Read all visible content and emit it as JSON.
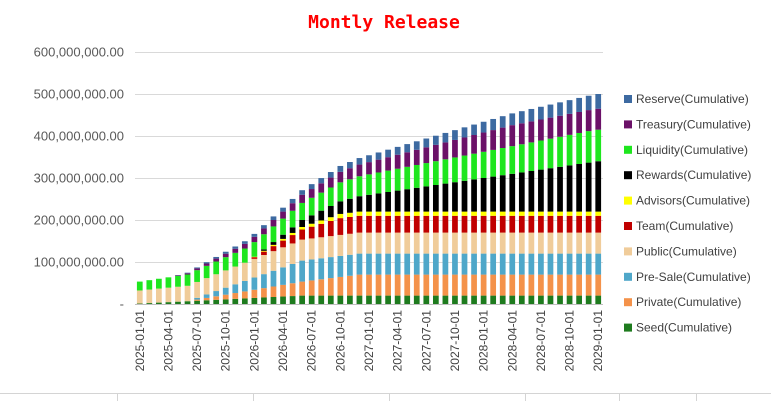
{
  "chart_data": {
    "type": "bar",
    "stacked": true,
    "title": "Montly Release",
    "xlabel": "",
    "ylabel": "",
    "ylim": [
      0,
      600000000
    ],
    "y_ticks": [
      "-",
      "100,000,000.00",
      "200,000,000.00",
      "300,000,000.00",
      "400,000,000.00",
      "500,000,000.00",
      "600,000,000.00"
    ],
    "grid": true,
    "legend_position": "right",
    "months_start": "2025-01",
    "months_count": 49,
    "x_tick_labels": [
      "2025-01-01",
      "2025-04-01",
      "2025-07-01",
      "2025-10-01",
      "2026-01-01",
      "2026-04-01",
      "2026-07-01",
      "2026-10-01",
      "2027-01-01",
      "2027-04-01",
      "2027-07-01",
      "2027-10-01",
      "2028-01-01",
      "2028-04-01",
      "2028-07-01",
      "2028-10-01",
      "2029-01-01"
    ],
    "series": [
      {
        "name": "Seed(Cumulative)",
        "color": "#1e7b1e",
        "start": 0,
        "end": 20000000,
        "vest_start": 0,
        "vest_months": 18
      },
      {
        "name": "Private(Cumulative)",
        "color": "#f4924a",
        "start": 0,
        "end": 50000000,
        "vest_start": 6,
        "vest_months": 18
      },
      {
        "name": "Pre-Sale(Cumulative)",
        "color": "#4fa7c9",
        "start": 0,
        "end": 50000000,
        "vest_start": 6,
        "vest_months": 12
      },
      {
        "name": "Public(Cumulative)",
        "color": "#f0cc9a",
        "start": 30000000,
        "end": 50000000,
        "vest_start": 0,
        "vest_months": 18
      },
      {
        "name": "Team(Cumulative)",
        "color": "#c00000",
        "start": 0,
        "end": 40000000,
        "vest_start": 12,
        "vest_months": 10
      },
      {
        "name": "Advisors(Cumulative)",
        "color": "#ffff00",
        "start": 0,
        "end": 10000000,
        "vest_start": 12,
        "vest_months": 10
      },
      {
        "name": "Rewards(Cumulative)",
        "color": "#000000",
        "start": 0,
        "end": 120000000,
        "vest_start": 13,
        "vest_months": 36
      },
      {
        "name": "Liquidity(Cumulative)",
        "color": "#1ee61e",
        "start": 20000000,
        "end": 75000000,
        "vest_start": 0,
        "vest_months": 48
      },
      {
        "name": "Treasury(Cumulative)",
        "color": "#6b1168",
        "start": 0,
        "end": 50000000,
        "vest_start": 4,
        "vest_months": 36
      },
      {
        "name": "Reserve(Cumulative)",
        "color": "#3d6aa1",
        "start": 0,
        "end": 35000000,
        "vest_start": 4,
        "vest_months": 45
      }
    ]
  }
}
